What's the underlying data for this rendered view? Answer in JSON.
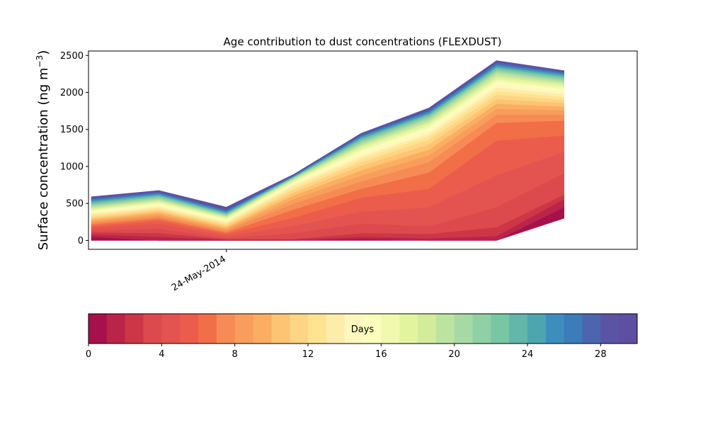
{
  "chart_data": {
    "type": "area",
    "stacked": true,
    "title": "Age contribution to dust concentrations (FLEXDUST)",
    "ylabel": "Surface concentration (ng m$^{-3}$)",
    "ylabel_text": "Surface concentration (ng m",
    "ylabel_sup": "−3",
    "ylabel_close": ")",
    "ylim": [
      -120,
      2560
    ],
    "yticks": [
      0,
      500,
      1000,
      1500,
      2000,
      2500
    ],
    "x": [
      "2014-05-22",
      "2014-05-23",
      "2014-05-24",
      "2014-05-25",
      "2014-05-26",
      "2014-05-27",
      "2014-05-28",
      "2014-05-29"
    ],
    "xlim": [
      "2014-05-21T23:00",
      "2014-05-30T02:00"
    ],
    "xtick_labels": [
      {
        "date": "2014-05-24",
        "label": "24-May-2014"
      }
    ],
    "series_count": 30,
    "cumulative_boundaries": [
      [
        0,
        0,
        0,
        0,
        0,
        0,
        0,
        300
      ],
      [
        50,
        0,
        0,
        0,
        20,
        0,
        0,
        450
      ],
      [
        80,
        50,
        10,
        10,
        50,
        30,
        60,
        560
      ],
      [
        110,
        100,
        20,
        20,
        100,
        90,
        180,
        620
      ],
      [
        140,
        160,
        30,
        100,
        230,
        190,
        450,
        910
      ],
      [
        170,
        230,
        60,
        200,
        390,
        450,
        880,
        1200
      ],
      [
        195,
        270,
        90,
        310,
        580,
        700,
        1350,
        1420
      ],
      [
        220,
        300,
        110,
        420,
        700,
        920,
        1590,
        1620
      ],
      [
        245,
        330,
        135,
        500,
        800,
        1060,
        1700,
        1700
      ],
      [
        265,
        355,
        155,
        560,
        880,
        1150,
        1780,
        1760
      ],
      [
        285,
        380,
        175,
        610,
        950,
        1230,
        1850,
        1810
      ],
      [
        305,
        400,
        195,
        650,
        1010,
        1300,
        1910,
        1860
      ],
      [
        325,
        420,
        215,
        690,
        1060,
        1360,
        1970,
        1900
      ],
      [
        345,
        440,
        235,
        720,
        1100,
        1410,
        2020,
        1940
      ],
      [
        365,
        460,
        255,
        750,
        1140,
        1450,
        2070,
        1980
      ],
      [
        385,
        480,
        270,
        770,
        1180,
        1490,
        2110,
        2020
      ],
      [
        400,
        500,
        285,
        790,
        1210,
        1530,
        2150,
        2050
      ],
      [
        415,
        515,
        300,
        805,
        1240,
        1560,
        2180,
        2080
      ],
      [
        430,
        530,
        315,
        820,
        1270,
        1590,
        2210,
        2110
      ],
      [
        445,
        545,
        325,
        830,
        1290,
        1610,
        2240,
        2130
      ],
      [
        460,
        560,
        335,
        840,
        1310,
        1640,
        2270,
        2150
      ],
      [
        475,
        575,
        345,
        850,
        1330,
        1660,
        2290,
        2170
      ],
      [
        490,
        590,
        355,
        855,
        1350,
        1680,
        2310,
        2190
      ],
      [
        505,
        605,
        365,
        860,
        1370,
        1700,
        2330,
        2210
      ],
      [
        520,
        615,
        375,
        865,
        1385,
        1710,
        2345,
        2225
      ],
      [
        535,
        625,
        385,
        870,
        1400,
        1725,
        2360,
        2240
      ],
      [
        548,
        635,
        395,
        875,
        1410,
        1740,
        2375,
        2255
      ],
      [
        560,
        645,
        405,
        880,
        1420,
        1750,
        2390,
        2265
      ],
      [
        570,
        655,
        415,
        885,
        1430,
        1765,
        2405,
        2275
      ],
      [
        580,
        665,
        430,
        890,
        1440,
        1775,
        2420,
        2285
      ],
      [
        590,
        675,
        450,
        895,
        1450,
        1790,
        2430,
        2295
      ]
    ],
    "colormap": "Spectral",
    "colors": [
      "#a7114b",
      "#bb2449",
      "#cc3646",
      "#dc4a4d",
      "#e35350",
      "#eb5c4d",
      "#f26e46",
      "#f68b55",
      "#f89d5b",
      "#fbae61",
      "#fdc473",
      "#fdd584",
      "#fee391",
      "#feedaa",
      "#fff8be",
      "#fafdbb",
      "#f0f9ae",
      "#e3f49f",
      "#d2ec9b",
      "#bde3a0",
      "#a6daa4",
      "#8fd0a5",
      "#78c6a4",
      "#62b6aa",
      "#4da5b0",
      "#3d8ebd",
      "#3b7cb9",
      "#4b65ae",
      "#5b53a4",
      "#5e4fa2"
    ],
    "colorbar": {
      "label": "Days",
      "ticks": [
        "0",
        "4",
        "8",
        "12",
        "16",
        "20",
        "24",
        "28"
      ],
      "tick_values": [
        0,
        4,
        8,
        12,
        16,
        20,
        24,
        28
      ],
      "range": [
        0,
        30
      ]
    }
  }
}
